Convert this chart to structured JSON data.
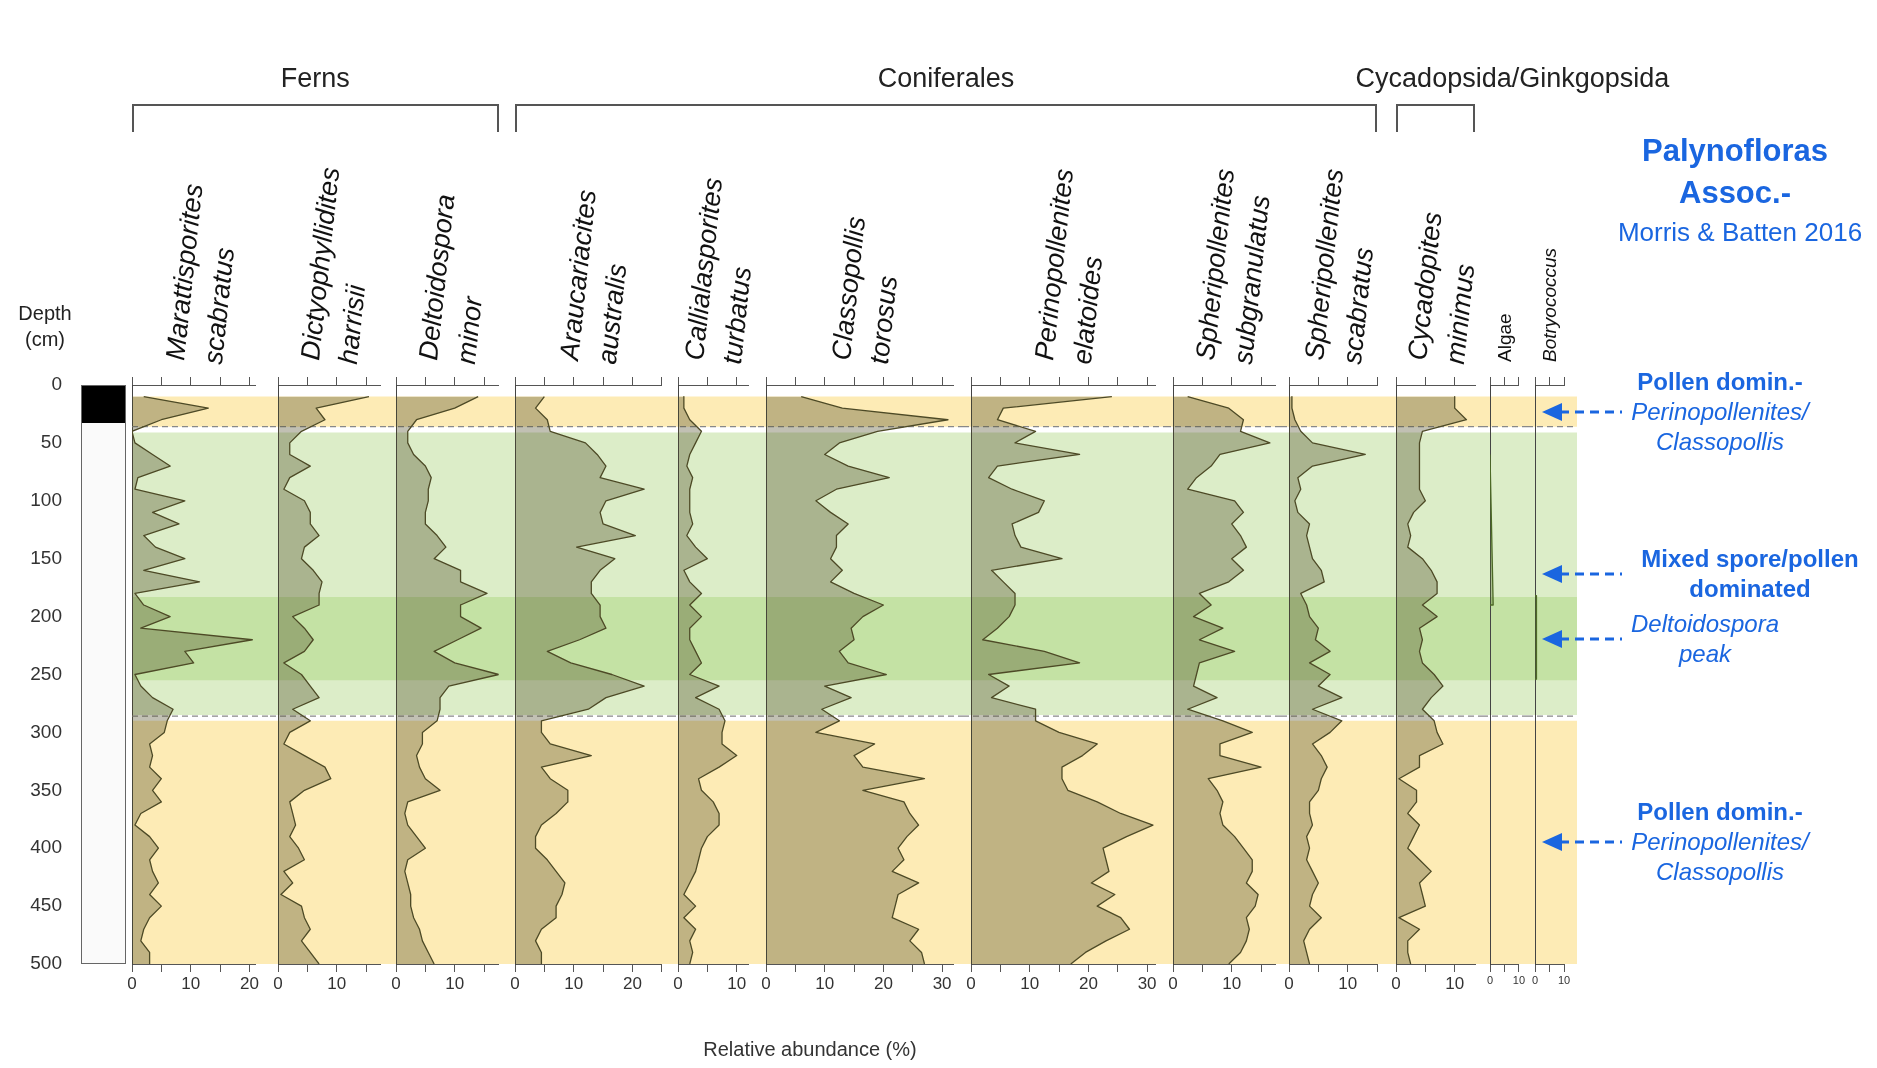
{
  "chart_data": [
    {
      "type": "area",
      "orientation": "horizontal",
      "title": "Marattisporites scabratus",
      "ylabel": "Depth (cm)",
      "annotations": [
        "Ferns"
      ],
      "color": "#4d4a26",
      "x": [
        10,
        20,
        30,
        40,
        50,
        60,
        70,
        80,
        90,
        100,
        110,
        120,
        130,
        140,
        150,
        160,
        170,
        180,
        190,
        200,
        210,
        220,
        230,
        240,
        250,
        260,
        270,
        280,
        290,
        300,
        310,
        320,
        330,
        340,
        350,
        360,
        370,
        380,
        390,
        400,
        410,
        420,
        430,
        440,
        450,
        460,
        470,
        480,
        490,
        500
      ],
      "values": [
        2,
        13,
        5,
        0,
        0.5,
        3.5,
        6.5,
        1,
        0.5,
        9,
        3.5,
        8,
        2,
        4,
        9,
        2,
        11.5,
        0.5,
        2,
        6.5,
        1.5,
        20.5,
        9,
        10.5,
        0.5,
        1.5,
        3.5,
        7,
        6,
        5.5,
        3,
        3.5,
        3,
        5,
        3.5,
        5,
        1.5,
        0.5,
        3,
        4.5,
        3,
        3.5,
        4.5,
        3,
        5,
        3,
        2,
        1.5,
        3,
        3
      ],
      "xlim": [
        0,
        21
      ],
      "xticks": [
        0,
        {
          "value": 5,
          "label": null
        },
        10,
        {
          "value": 15,
          "label": null
        },
        20
      ],
      "ylim": [
        500,
        0
      ],
      "yticks": [
        0,
        50,
        100,
        150,
        200,
        250,
        300,
        350,
        400,
        450,
        500
      ],
      "bands": [
        {
          "axis": "y",
          "from": 10,
          "to": 36,
          "color": "#fdebb5"
        },
        {
          "axis": "y",
          "from": 41,
          "to": 285,
          "color": "#dcedc8"
        },
        {
          "axis": "y",
          "from": 183,
          "to": 255,
          "color": "#c4e2a4"
        },
        {
          "axis": "y",
          "from": 290,
          "to": 500,
          "color": "#fdebb5"
        }
      ],
      "ref_lines": [
        {
          "axis": "y",
          "value": 36,
          "color": "#888888",
          "line_style": "dashed"
        },
        {
          "axis": "y",
          "value": 286,
          "color": "#888888",
          "line_style": "dashed"
        }
      ]
    },
    {
      "type": "area",
      "orientation": "horizontal",
      "title": "Dictyophyllidites harrisii",
      "color": "#4d4a26",
      "tick_labels": "x",
      "x": [
        10,
        20,
        30,
        40,
        50,
        60,
        70,
        80,
        90,
        100,
        110,
        120,
        130,
        140,
        150,
        160,
        170,
        180,
        190,
        200,
        210,
        220,
        230,
        240,
        250,
        260,
        270,
        280,
        290,
        300,
        310,
        320,
        330,
        340,
        350,
        360,
        370,
        380,
        390,
        400,
        410,
        420,
        430,
        440,
        450,
        460,
        470,
        480,
        490,
        500
      ],
      "values": [
        15.5,
        6.5,
        8,
        4,
        2,
        2,
        5.5,
        2,
        1,
        4.5,
        5.5,
        5.5,
        7,
        4.5,
        4,
        6,
        7.5,
        7,
        7,
        2.5,
        4.5,
        6,
        4.5,
        1,
        4,
        5.5,
        7,
        2.5,
        5.5,
        2,
        1,
        4.5,
        8,
        9,
        4.5,
        2,
        2.5,
        3,
        2,
        3.5,
        4.5,
        1,
        2.5,
        0.5,
        4,
        4.5,
        5.5,
        4,
        5.5,
        7
      ],
      "xlim": [
        0,
        17.5
      ],
      "xticks": [
        0,
        {
          "value": 5,
          "label": null
        },
        10,
        {
          "value": 15,
          "label": null
        }
      ],
      "ylim": [
        500,
        0
      ],
      "yticks": [
        0,
        50,
        100,
        150,
        200,
        250,
        300,
        350,
        400,
        450,
        500
      ],
      "bands": [
        {
          "axis": "y",
          "from": 10,
          "to": 36,
          "color": "#fdebb5"
        },
        {
          "axis": "y",
          "from": 41,
          "to": 285,
          "color": "#dcedc8"
        },
        {
          "axis": "y",
          "from": 183,
          "to": 255,
          "color": "#c4e2a4"
        },
        {
          "axis": "y",
          "from": 290,
          "to": 500,
          "color": "#fdebb5"
        }
      ],
      "ref_lines": [
        {
          "axis": "y",
          "value": 36,
          "color": "#888888",
          "line_style": "dashed"
        },
        {
          "axis": "y",
          "value": 286,
          "color": "#888888",
          "line_style": "dashed"
        }
      ]
    },
    {
      "type": "area",
      "orientation": "horizontal",
      "title": "Deltoidospora minor",
      "color": "#4d4a26",
      "tick_labels": "x",
      "x": [
        10,
        20,
        30,
        40,
        50,
        60,
        70,
        80,
        90,
        100,
        110,
        120,
        130,
        140,
        150,
        160,
        170,
        180,
        190,
        200,
        210,
        220,
        230,
        240,
        250,
        260,
        270,
        280,
        290,
        300,
        310,
        320,
        330,
        340,
        350,
        360,
        370,
        380,
        390,
        400,
        410,
        420,
        430,
        440,
        450,
        460,
        470,
        480,
        490,
        500
      ],
      "values": [
        14,
        10,
        3.5,
        2,
        2,
        3,
        5,
        6,
        5.5,
        5.5,
        5,
        5,
        7,
        8.5,
        6.5,
        11,
        11,
        15.5,
        11,
        11,
        14.5,
        10.5,
        6.5,
        10,
        17.5,
        9,
        7.5,
        7.5,
        7,
        4.5,
        4.5,
        3.5,
        4,
        5,
        7.5,
        2,
        1.5,
        2,
        3.5,
        5,
        2,
        1.5,
        2,
        2.5,
        2.5,
        3,
        4,
        4.5,
        5.5,
        6.5
      ],
      "xlim": [
        0,
        17.5
      ],
      "xticks": [
        0,
        {
          "value": 5,
          "label": null
        },
        10,
        {
          "value": 15,
          "label": null
        }
      ],
      "ylim": [
        500,
        0
      ],
      "yticks": [
        0,
        50,
        100,
        150,
        200,
        250,
        300,
        350,
        400,
        450,
        500
      ],
      "bands": [
        {
          "axis": "y",
          "from": 10,
          "to": 36,
          "color": "#fdebb5"
        },
        {
          "axis": "y",
          "from": 41,
          "to": 285,
          "color": "#dcedc8"
        },
        {
          "axis": "y",
          "from": 183,
          "to": 255,
          "color": "#c4e2a4"
        },
        {
          "axis": "y",
          "from": 290,
          "to": 500,
          "color": "#fdebb5"
        }
      ],
      "ref_lines": [
        {
          "axis": "y",
          "value": 36,
          "color": "#888888",
          "line_style": "dashed"
        },
        {
          "axis": "y",
          "value": 286,
          "color": "#888888",
          "line_style": "dashed"
        }
      ]
    },
    {
      "type": "area",
      "orientation": "horizontal",
      "title": "Araucariacites australis",
      "annotations": [
        "Coniferales"
      ],
      "color": "#4d4a26",
      "tick_labels": "x",
      "x": [
        10,
        20,
        30,
        40,
        50,
        60,
        70,
        80,
        90,
        100,
        110,
        120,
        130,
        140,
        150,
        160,
        170,
        180,
        190,
        200,
        210,
        220,
        230,
        240,
        250,
        260,
        270,
        280,
        290,
        300,
        310,
        320,
        330,
        340,
        350,
        360,
        370,
        380,
        390,
        400,
        410,
        420,
        430,
        440,
        450,
        460,
        470,
        480,
        490,
        500
      ],
      "values": [
        5,
        3.5,
        5.5,
        6,
        12,
        14,
        15.5,
        14.5,
        22,
        15.5,
        14.5,
        15,
        20.5,
        10.5,
        17,
        14.5,
        13,
        13,
        14.5,
        14.5,
        15.5,
        11,
        5.5,
        9.5,
        16.5,
        22,
        15.5,
        12.5,
        4.5,
        4.5,
        6,
        13,
        4.5,
        6,
        9,
        9,
        7,
        4.5,
        3.5,
        3.5,
        5.5,
        7,
        8.5,
        8,
        7,
        7,
        4.5,
        3.5,
        4.5,
        4.5
      ],
      "xlim": [
        0,
        25
      ],
      "xticks": [
        0,
        {
          "value": 5,
          "label": null
        },
        10,
        {
          "value": 15,
          "label": null
        },
        20,
        {
          "value": 25,
          "label": null
        }
      ],
      "ylim": [
        500,
        0
      ],
      "yticks": [
        0,
        50,
        100,
        150,
        200,
        250,
        300,
        350,
        400,
        450,
        500
      ],
      "bands": [
        {
          "axis": "y",
          "from": 10,
          "to": 36,
          "color": "#fdebb5"
        },
        {
          "axis": "y",
          "from": 41,
          "to": 285,
          "color": "#dcedc8"
        },
        {
          "axis": "y",
          "from": 183,
          "to": 255,
          "color": "#c4e2a4"
        },
        {
          "axis": "y",
          "from": 290,
          "to": 500,
          "color": "#fdebb5"
        }
      ],
      "ref_lines": [
        {
          "axis": "y",
          "value": 36,
          "color": "#888888",
          "line_style": "dashed"
        },
        {
          "axis": "y",
          "value": 286,
          "color": "#888888",
          "line_style": "dashed"
        }
      ]
    },
    {
      "type": "area",
      "orientation": "horizontal",
      "title": "Callialasporites turbatus",
      "color": "#4d4a26",
      "tick_labels": "x",
      "x": [
        10,
        20,
        30,
        40,
        50,
        60,
        70,
        80,
        90,
        100,
        110,
        120,
        130,
        140,
        150,
        160,
        170,
        180,
        190,
        200,
        210,
        220,
        230,
        240,
        250,
        260,
        270,
        280,
        290,
        300,
        310,
        320,
        330,
        340,
        350,
        360,
        370,
        380,
        390,
        400,
        410,
        420,
        430,
        440,
        450,
        460,
        470,
        480,
        490,
        500
      ],
      "values": [
        1,
        1,
        2,
        4,
        3,
        2,
        1.5,
        2.5,
        2,
        2,
        2,
        2.5,
        1.5,
        3,
        5,
        1,
        2,
        4,
        2,
        4,
        2,
        2,
        3,
        4,
        2,
        7,
        3,
        7,
        8,
        7.5,
        7.5,
        10,
        7,
        3.5,
        4,
        6,
        7,
        7,
        5,
        4,
        3.5,
        3,
        2,
        1,
        3,
        1,
        3,
        2,
        2.5,
        2
      ],
      "xlim": [
        0,
        12
      ],
      "xticks": [
        0,
        {
          "value": 5,
          "label": null
        },
        10
      ],
      "ylim": [
        500,
        0
      ],
      "yticks": [
        0,
        50,
        100,
        150,
        200,
        250,
        300,
        350,
        400,
        450,
        500
      ],
      "bands": [
        {
          "axis": "y",
          "from": 10,
          "to": 36,
          "color": "#fdebb5"
        },
        {
          "axis": "y",
          "from": 41,
          "to": 285,
          "color": "#dcedc8"
        },
        {
          "axis": "y",
          "from": 183,
          "to": 255,
          "color": "#c4e2a4"
        },
        {
          "axis": "y",
          "from": 290,
          "to": 500,
          "color": "#fdebb5"
        }
      ],
      "ref_lines": [
        {
          "axis": "y",
          "value": 36,
          "color": "#888888",
          "line_style": "dashed"
        },
        {
          "axis": "y",
          "value": 286,
          "color": "#888888",
          "line_style": "dashed"
        }
      ]
    },
    {
      "type": "area",
      "orientation": "horizontal",
      "title": "Classopollis torosus",
      "xlabel": "Relative abundance (%)",
      "color": "#4d4a26",
      "tick_labels": "x",
      "x": [
        10,
        20,
        30,
        40,
        50,
        60,
        70,
        80,
        90,
        100,
        110,
        120,
        130,
        140,
        150,
        160,
        170,
        180,
        190,
        200,
        210,
        220,
        230,
        240,
        250,
        260,
        270,
        280,
        290,
        300,
        310,
        320,
        330,
        340,
        350,
        360,
        370,
        380,
        390,
        400,
        410,
        420,
        430,
        440,
        450,
        460,
        470,
        480,
        490,
        500
      ],
      "values": [
        6,
        13,
        31,
        19,
        12.5,
        10,
        14,
        21,
        12,
        8.5,
        11,
        14,
        12,
        12,
        11,
        13,
        11,
        15,
        20,
        16.5,
        14.5,
        15,
        12.5,
        14,
        20.5,
        10,
        14.5,
        9.5,
        12.5,
        8.5,
        18.5,
        15,
        16.5,
        27,
        16.5,
        23.5,
        24.5,
        26,
        24,
        22.5,
        23.5,
        21.5,
        26,
        22.5,
        22,
        21.5,
        26,
        24.5,
        26.5,
        27
      ],
      "xlim": [
        0,
        32
      ],
      "xticks": [
        0,
        {
          "value": 5,
          "label": null
        },
        10,
        {
          "value": 15,
          "label": null
        },
        20,
        {
          "value": 25,
          "label": null
        },
        30
      ],
      "ylim": [
        500,
        0
      ],
      "yticks": [
        0,
        50,
        100,
        150,
        200,
        250,
        300,
        350,
        400,
        450,
        500
      ],
      "bands": [
        {
          "axis": "y",
          "from": 10,
          "to": 36,
          "color": "#fdebb5"
        },
        {
          "axis": "y",
          "from": 41,
          "to": 285,
          "color": "#dcedc8"
        },
        {
          "axis": "y",
          "from": 183,
          "to": 255,
          "color": "#c4e2a4"
        },
        {
          "axis": "y",
          "from": 290,
          "to": 500,
          "color": "#fdebb5"
        }
      ],
      "ref_lines": [
        {
          "axis": "y",
          "value": 36,
          "color": "#888888",
          "line_style": "dashed"
        },
        {
          "axis": "y",
          "value": 286,
          "color": "#888888",
          "line_style": "dashed"
        }
      ]
    },
    {
      "type": "area",
      "orientation": "horizontal",
      "title": "Perinopollenites elatoides",
      "color": "#4d4a26",
      "tick_labels": "x",
      "x": [
        10,
        20,
        30,
        40,
        50,
        60,
        70,
        80,
        90,
        100,
        110,
        120,
        130,
        140,
        150,
        160,
        170,
        180,
        190,
        200,
        210,
        220,
        230,
        240,
        250,
        260,
        270,
        280,
        290,
        300,
        310,
        320,
        330,
        340,
        350,
        360,
        370,
        380,
        390,
        400,
        410,
        420,
        430,
        440,
        450,
        460,
        470,
        480,
        490,
        500
      ],
      "values": [
        24,
        5.5,
        4.5,
        11,
        7.5,
        18.5,
        4.5,
        3,
        7,
        12.5,
        11.5,
        7,
        7.5,
        8.5,
        15.5,
        3.5,
        5.5,
        7.5,
        7.5,
        6.5,
        4.5,
        2,
        12.5,
        18.5,
        3,
        6.5,
        3.5,
        11,
        11,
        15,
        21.5,
        19,
        15.5,
        15.5,
        16.5,
        21.5,
        25.5,
        31,
        26.5,
        22.5,
        23,
        23.5,
        20.5,
        24.5,
        21.5,
        25.5,
        27,
        23,
        19.5,
        17
      ],
      "xlim": [
        0,
        31.5
      ],
      "xticks": [
        0,
        {
          "value": 5,
          "label": null
        },
        10,
        {
          "value": 15,
          "label": null
        },
        20,
        {
          "value": 25,
          "label": null
        },
        30
      ],
      "ylim": [
        500,
        0
      ],
      "yticks": [
        0,
        50,
        100,
        150,
        200,
        250,
        300,
        350,
        400,
        450,
        500
      ],
      "bands": [
        {
          "axis": "y",
          "from": 10,
          "to": 36,
          "color": "#fdebb5"
        },
        {
          "axis": "y",
          "from": 41,
          "to": 285,
          "color": "#dcedc8"
        },
        {
          "axis": "y",
          "from": 183,
          "to": 255,
          "color": "#c4e2a4"
        },
        {
          "axis": "y",
          "from": 290,
          "to": 500,
          "color": "#fdebb5"
        }
      ],
      "ref_lines": [
        {
          "axis": "y",
          "value": 36,
          "color": "#888888",
          "line_style": "dashed"
        },
        {
          "axis": "y",
          "value": 286,
          "color": "#888888",
          "line_style": "dashed"
        }
      ]
    },
    {
      "type": "area",
      "orientation": "horizontal",
      "title": "Spheripollenites subgranulatus",
      "color": "#4d4a26",
      "tick_labels": "x",
      "x": [
        10,
        20,
        30,
        40,
        50,
        60,
        70,
        80,
        90,
        100,
        110,
        120,
        130,
        140,
        150,
        160,
        170,
        180,
        190,
        200,
        210,
        220,
        230,
        240,
        250,
        260,
        270,
        280,
        290,
        300,
        310,
        320,
        330,
        340,
        350,
        360,
        370,
        380,
        390,
        400,
        410,
        420,
        430,
        440,
        450,
        460,
        470,
        480,
        490,
        500
      ],
      "values": [
        2.5,
        9.5,
        12,
        11.5,
        16.5,
        8,
        6.5,
        4,
        2.5,
        10.5,
        12,
        10,
        11.5,
        12.5,
        10,
        12,
        9.5,
        4.5,
        6.5,
        3.5,
        8.5,
        4.5,
        10.5,
        4.5,
        4,
        3.5,
        7.5,
        2.5,
        8.5,
        13.5,
        8,
        8,
        15,
        6,
        7.5,
        8.5,
        8,
        8.5,
        10.5,
        12,
        13.5,
        13.5,
        12.5,
        14.5,
        14,
        12.5,
        13,
        12.5,
        11.5,
        9.5
      ],
      "xlim": [
        0,
        17.5
      ],
      "xticks": [
        0,
        {
          "value": 5,
          "label": null
        },
        10,
        {
          "value": 15,
          "label": null
        }
      ],
      "ylim": [
        500,
        0
      ],
      "yticks": [
        0,
        50,
        100,
        150,
        200,
        250,
        300,
        350,
        400,
        450,
        500
      ],
      "bands": [
        {
          "axis": "y",
          "from": 10,
          "to": 36,
          "color": "#fdebb5"
        },
        {
          "axis": "y",
          "from": 41,
          "to": 285,
          "color": "#dcedc8"
        },
        {
          "axis": "y",
          "from": 183,
          "to": 255,
          "color": "#c4e2a4"
        },
        {
          "axis": "y",
          "from": 290,
          "to": 500,
          "color": "#fdebb5"
        }
      ],
      "ref_lines": [
        {
          "axis": "y",
          "value": 36,
          "color": "#888888",
          "line_style": "dashed"
        },
        {
          "axis": "y",
          "value": 286,
          "color": "#888888",
          "line_style": "dashed"
        }
      ]
    },
    {
      "type": "area",
      "orientation": "horizontal",
      "title": "Spheripollenites scabratus",
      "color": "#4d4a26",
      "tick_labels": "x",
      "x": [
        10,
        20,
        30,
        40,
        50,
        60,
        70,
        80,
        90,
        100,
        110,
        120,
        130,
        140,
        150,
        160,
        170,
        180,
        190,
        200,
        210,
        220,
        230,
        240,
        250,
        260,
        270,
        280,
        290,
        300,
        310,
        320,
        330,
        340,
        350,
        360,
        370,
        380,
        390,
        400,
        410,
        420,
        430,
        440,
        450,
        460,
        470,
        480,
        490,
        500
      ],
      "values": [
        0.5,
        0.5,
        1,
        2,
        4,
        13,
        4,
        1.5,
        2,
        1,
        1.5,
        3.5,
        3,
        3.5,
        4,
        5.5,
        6,
        2,
        3,
        3.5,
        5,
        4.5,
        7,
        3.5,
        7,
        5,
        9,
        4,
        9,
        7,
        4,
        5.5,
        6.5,
        5.5,
        5,
        3.5,
        3.5,
        4,
        3,
        3.5,
        3,
        4,
        5,
        4,
        3.5,
        5.5,
        3.5,
        2.5,
        3,
        3.5
      ],
      "xlim": [
        0,
        15
      ],
      "xticks": [
        0,
        {
          "value": 5,
          "label": null
        },
        10,
        {
          "value": 15,
          "label": null
        }
      ],
      "ylim": [
        500,
        0
      ],
      "yticks": [
        0,
        50,
        100,
        150,
        200,
        250,
        300,
        350,
        400,
        450,
        500
      ],
      "bands": [
        {
          "axis": "y",
          "from": 10,
          "to": 36,
          "color": "#fdebb5"
        },
        {
          "axis": "y",
          "from": 41,
          "to": 285,
          "color": "#dcedc8"
        },
        {
          "axis": "y",
          "from": 183,
          "to": 255,
          "color": "#c4e2a4"
        },
        {
          "axis": "y",
          "from": 290,
          "to": 500,
          "color": "#fdebb5"
        }
      ],
      "ref_lines": [
        {
          "axis": "y",
          "value": 36,
          "color": "#888888",
          "line_style": "dashed"
        },
        {
          "axis": "y",
          "value": 286,
          "color": "#888888",
          "line_style": "dashed"
        }
      ]
    },
    {
      "type": "area",
      "orientation": "horizontal",
      "title": "Cycadopites minimus",
      "annotations": [
        "Cycadopsida/Ginkgopsida"
      ],
      "color": "#4d4a26",
      "tick_labels": "x",
      "x": [
        10,
        20,
        30,
        40,
        50,
        60,
        70,
        80,
        90,
        100,
        110,
        120,
        130,
        140,
        150,
        160,
        170,
        180,
        190,
        200,
        210,
        220,
        230,
        240,
        250,
        260,
        270,
        280,
        290,
        300,
        310,
        320,
        330,
        340,
        350,
        360,
        370,
        380,
        390,
        400,
        410,
        420,
        430,
        440,
        450,
        460,
        470,
        480,
        490,
        500
      ],
      "values": [
        10,
        10,
        12,
        4.5,
        4,
        4,
        4,
        4,
        4,
        5,
        3,
        2,
        2.5,
        2,
        4.5,
        6,
        7,
        7,
        4.5,
        7,
        4,
        4.5,
        4,
        4.5,
        6.5,
        8,
        6,
        4.5,
        6.5,
        7,
        8,
        4,
        4,
        0.5,
        3.5,
        3.5,
        2,
        4,
        3,
        2,
        4,
        6,
        4,
        4.5,
        5,
        0.5,
        4,
        2,
        2,
        2.5
      ],
      "xlim": [
        0,
        13.5
      ],
      "xticks": [
        0,
        {
          "value": 5,
          "label": null
        },
        10
      ],
      "ylim": [
        500,
        0
      ],
      "yticks": [
        0,
        50,
        100,
        150,
        200,
        250,
        300,
        350,
        400,
        450,
        500
      ],
      "bands": [
        {
          "axis": "y",
          "from": 10,
          "to": 36,
          "color": "#fdebb5"
        },
        {
          "axis": "y",
          "from": 41,
          "to": 285,
          "color": "#dcedc8"
        },
        {
          "axis": "y",
          "from": 183,
          "to": 255,
          "color": "#c4e2a4"
        },
        {
          "axis": "y",
          "from": 290,
          "to": 500,
          "color": "#fdebb5"
        }
      ],
      "ref_lines": [
        {
          "axis": "y",
          "value": 36,
          "color": "#888888",
          "line_style": "dashed"
        },
        {
          "axis": "y",
          "value": 286,
          "color": "#888888",
          "line_style": "dashed"
        }
      ]
    },
    {
      "type": "area",
      "orientation": "horizontal",
      "title": "Algae",
      "color": "#4d6a26",
      "tick_labels": "x",
      "x": [
        60,
        60,
        190,
        190
      ],
      "values": [
        0,
        0.3,
        1.1,
        0
      ],
      "xlim": [
        0,
        10
      ],
      "xticks": [
        0,
        {
          "value": 5,
          "label": null
        },
        10
      ],
      "ylim": [
        500,
        0
      ],
      "yticks": [
        0,
        50,
        100,
        150,
        200,
        250,
        300,
        350,
        400,
        450,
        500
      ],
      "bands": [
        {
          "axis": "y",
          "from": 10,
          "to": 36,
          "color": "#fdebb5"
        },
        {
          "axis": "y",
          "from": 41,
          "to": 285,
          "color": "#dcedc8"
        },
        {
          "axis": "y",
          "from": 183,
          "to": 255,
          "color": "#c4e2a4"
        },
        {
          "axis": "y",
          "from": 290,
          "to": 500,
          "color": "#fdebb5"
        }
      ],
      "ref_lines": [
        {
          "axis": "y",
          "value": 36,
          "color": "#888888",
          "line_style": "dashed"
        },
        {
          "axis": "y",
          "value": 286,
          "color": "#888888",
          "line_style": "dashed"
        }
      ]
    },
    {
      "type": "area",
      "orientation": "horizontal",
      "title": "Botryococcus",
      "annotations": [
        "Palynofloras Assoc.-",
        "Morris & Batten 2016"
      ],
      "color": "#4d6a26",
      "tick_labels": "x",
      "x": [
        182,
        182,
        254,
        254
      ],
      "values": [
        0,
        0.5,
        0.5,
        0
      ],
      "xlim": [
        0,
        10
      ],
      "xticks": [
        0,
        {
          "value": 5,
          "label": null
        },
        10
      ],
      "ylim": [
        500,
        0
      ],
      "yticks": [
        0,
        50,
        100,
        150,
        200,
        250,
        300,
        350,
        400,
        450,
        500
      ],
      "bands": [
        {
          "axis": "y",
          "from": 10,
          "to": 36,
          "color": "#fdebb5",
          "label": "Pollen domin.- Perinopollenites/Classopollis"
        },
        {
          "axis": "y",
          "from": 41,
          "to": 285,
          "color": "#dcedc8",
          "label": "Mixed spore/pollen dominated"
        },
        {
          "axis": "y",
          "from": 183,
          "to": 255,
          "color": "#c4e2a4",
          "label": "Deltoidospora peak"
        },
        {
          "axis": "y",
          "from": 290,
          "to": 500,
          "color": "#fdebb5",
          "label": "Pollen domin.- Perinopollenites/Classopollis"
        }
      ],
      "ref_lines": [
        {
          "axis": "y",
          "value": 36,
          "color": "#888888",
          "line_style": "dashed"
        },
        {
          "axis": "y",
          "value": 286,
          "color": "#888888",
          "line_style": "dashed"
        }
      ]
    }
  ]
}
